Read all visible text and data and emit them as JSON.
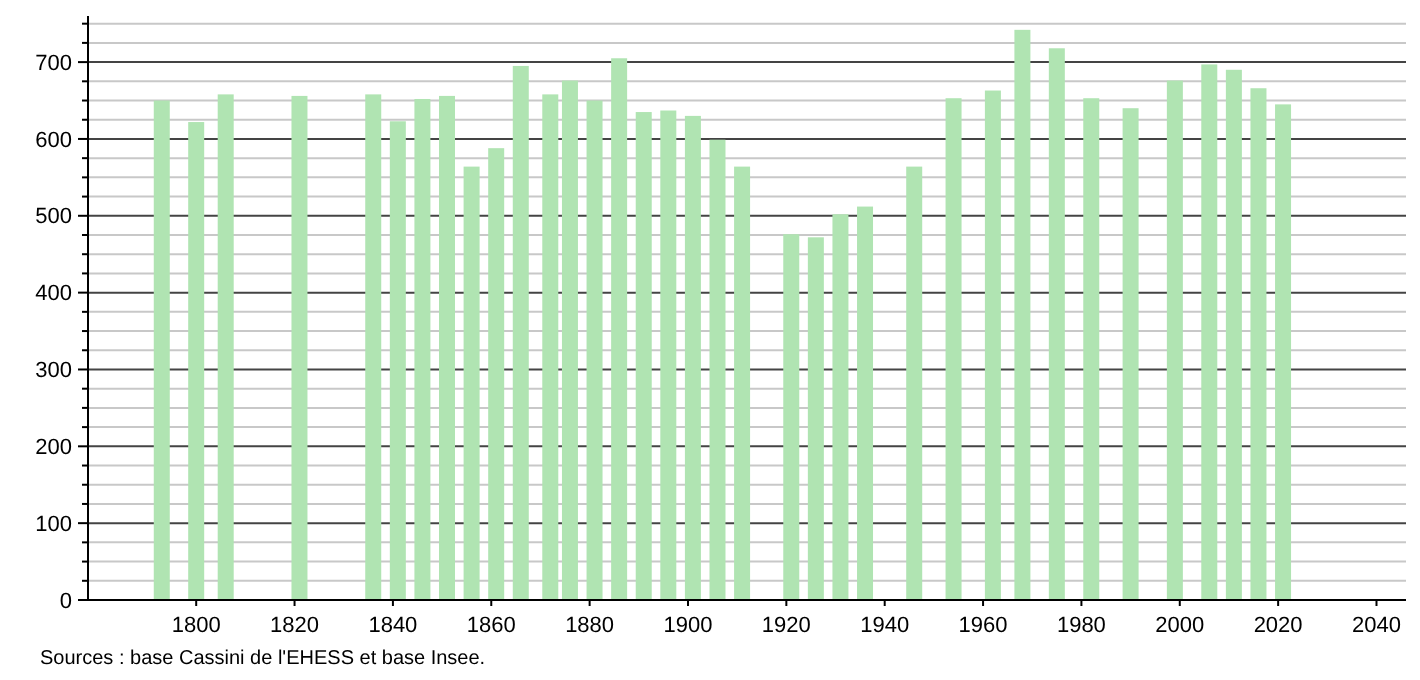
{
  "chart_data": {
    "type": "bar",
    "x": [
      1793,
      1800,
      1806,
      1821,
      1836,
      1841,
      1846,
      1851,
      1856,
      1861,
      1866,
      1872,
      1876,
      1881,
      1886,
      1891,
      1896,
      1901,
      1906,
      1911,
      1921,
      1926,
      1931,
      1936,
      1946,
      1954,
      1962,
      1968,
      1975,
      1982,
      1990,
      1999,
      2006,
      2011,
      2016,
      2021
    ],
    "values": [
      650,
      622,
      658,
      656,
      658,
      623,
      652,
      656,
      564,
      588,
      695,
      658,
      676,
      650,
      705,
      635,
      637,
      630,
      599,
      564,
      476,
      472,
      502,
      512,
      564,
      653,
      663,
      742,
      718,
      653,
      640,
      676,
      697,
      690,
      666,
      645
    ],
    "color": "#b0e4b2",
    "xlim": [
      1778,
      2046
    ],
    "xticks": [
      1800,
      1820,
      1840,
      1860,
      1880,
      1900,
      1920,
      1940,
      1960,
      1980,
      2000,
      2020,
      2040
    ],
    "ylim": [
      0,
      760
    ],
    "yticks": [
      0,
      {
        "value": 25,
        "label": null
      },
      {
        "value": 50,
        "label": null
      },
      {
        "value": 75,
        "label": null
      },
      100,
      {
        "value": 125,
        "label": null
      },
      {
        "value": 150,
        "label": null
      },
      {
        "value": 175,
        "label": null
      },
      200,
      {
        "value": 225,
        "label": null
      },
      {
        "value": 250,
        "label": null
      },
      {
        "value": 275,
        "label": null
      },
      300,
      {
        "value": 325,
        "label": null
      },
      {
        "value": 350,
        "label": null
      },
      {
        "value": 375,
        "label": null
      },
      400,
      {
        "value": 425,
        "label": null
      },
      {
        "value": 450,
        "label": null
      },
      {
        "value": 475,
        "label": null
      },
      500,
      {
        "value": 525,
        "label": null
      },
      {
        "value": 550,
        "label": null
      },
      {
        "value": 575,
        "label": null
      },
      600,
      {
        "value": 625,
        "label": null
      },
      {
        "value": 650,
        "label": null
      },
      {
        "value": 675,
        "label": null
      },
      700,
      {
        "value": 725,
        "label": null
      },
      {
        "value": 750,
        "label": null
      }
    ],
    "grid": true,
    "annotations": [
      "Sources : base Cassini de l'EHESS et base Insee."
    ]
  }
}
